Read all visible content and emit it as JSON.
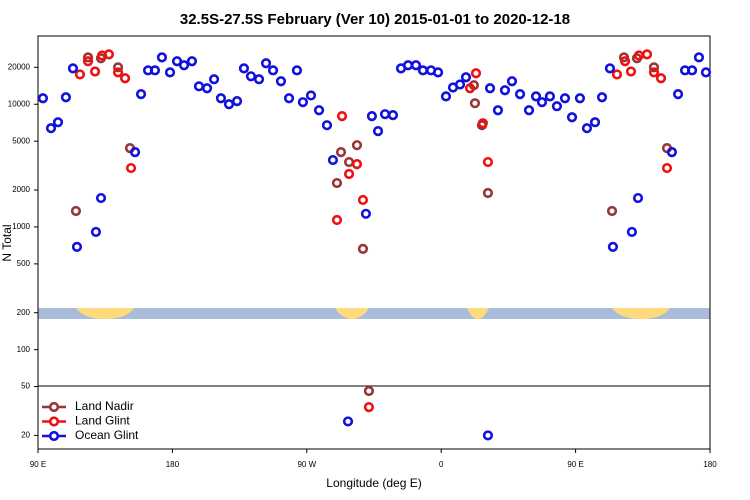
{
  "chart_data": {
    "type": "scatter",
    "title": "32.5S-27.5S February (Ver 10)   2015-01-01 to 2020-12-18",
    "xlabel": "Longitude (deg E)",
    "ylabel": "N Total",
    "xlim": [
      90,
      540
    ],
    "ylim": [
      15.5,
      36000
    ],
    "log_y": true,
    "legend": "bottom-left",
    "xticks": [
      {
        "value": 90,
        "label": "90 E"
      },
      {
        "value": 180,
        "label": "180"
      },
      {
        "value": 270,
        "label": "90 W"
      },
      {
        "value": 360,
        "label": "0"
      },
      {
        "value": 450,
        "label": "90 E"
      },
      {
        "value": 540,
        "label": "180"
      }
    ],
    "yticks": [
      20,
      50,
      100,
      200,
      500,
      1000,
      2000,
      5000,
      10000,
      20000
    ],
    "series": [
      {
        "name": "Land Nadir",
        "color": "#983535",
        "x": [
          115.4,
          123.5,
          132.2,
          143.6,
          151.6,
          290.2,
          292.9,
          298.3,
          303.6,
          307.6,
          311.6,
          381.9,
          382.6,
          387.3,
          391.3,
          474.4,
          482.4,
          491.1,
          502.5,
          511.2
        ],
        "values": [
          1350,
          24100,
          23700,
          20000,
          4390,
          2280,
          4070,
          3380,
          4640,
          663,
          46,
          14300,
          10200,
          6750,
          1890,
          1350,
          24100,
          23700,
          20000,
          4390
        ]
      },
      {
        "name": "Land Glint",
        "color": "#ee1111",
        "x": [
          118.1,
          123.5,
          128.2,
          132.9,
          137.5,
          143.6,
          148.3,
          152.3,
          290.2,
          293.6,
          298.3,
          303.6,
          307.6,
          311.6,
          379.3,
          383.3,
          387.9,
          391.3,
          477.7,
          483.1,
          487.1,
          492.4,
          497.8,
          502.5,
          507.2,
          511.2
        ],
        "values": [
          17500,
          22400,
          18500,
          25000,
          25500,
          18200,
          16300,
          3020,
          1140,
          8000,
          2700,
          3250,
          1660,
          34,
          13500,
          17900,
          7010,
          3380,
          17500,
          22400,
          18500,
          25000,
          25500,
          18200,
          16300,
          3020
        ]
      },
      {
        "name": "Ocean Glint",
        "color": "#1111dd",
        "x": [
          93.3,
          98.7,
          103.4,
          108.7,
          113.4,
          116.1,
          128.8,
          132.2,
          155.0,
          159.0,
          163.7,
          168.3,
          173.0,
          178.4,
          183.1,
          187.8,
          193.1,
          197.8,
          203.2,
          207.9,
          212.5,
          217.9,
          223.3,
          227.9,
          232.6,
          238.0,
          242.7,
          247.4,
          252.7,
          258.1,
          263.4,
          267.4,
          272.8,
          278.2,
          283.5,
          287.5,
          297.6,
          309.6,
          313.6,
          317.7,
          322.4,
          327.7,
          333.1,
          337.8,
          343.1,
          347.8,
          353.2,
          357.9,
          363.2,
          367.9,
          372.6,
          376.6,
          391.3,
          392.7,
          398.0,
          402.7,
          407.4,
          412.8,
          418.8,
          423.5,
          427.5,
          432.8,
          437.5,
          442.9,
          447.6,
          452.9,
          457.6,
          463.0,
          467.7,
          473.0,
          475.0,
          487.7,
          491.8,
          514.5,
          518.6,
          523.3,
          528.0,
          532.6,
          537.3
        ],
        "values": [
          11200,
          6380,
          7140,
          11400,
          19600,
          688,
          911,
          1720,
          4070,
          12100,
          18900,
          18900,
          24100,
          18200,
          22400,
          20800,
          22400,
          14000,
          13500,
          16000,
          11200,
          10000,
          10600,
          19600,
          16900,
          16000,
          21600,
          18900,
          15400,
          11200,
          18900,
          10400,
          11800,
          8940,
          6750,
          3510,
          26,
          1280,
          8000,
          6040,
          8300,
          8150,
          19600,
          20800,
          20800,
          18900,
          18900,
          18200,
          11600,
          13700,
          14500,
          16600,
          20,
          13500,
          8940,
          13000,
          15400,
          12100,
          8940,
          11600,
          10400,
          11600,
          9640,
          11200,
          7840,
          11200,
          6380,
          7140,
          11400,
          19600,
          688,
          911,
          1720,
          4070,
          12100,
          18900,
          18900,
          24100,
          18200
        ]
      }
    ]
  }
}
